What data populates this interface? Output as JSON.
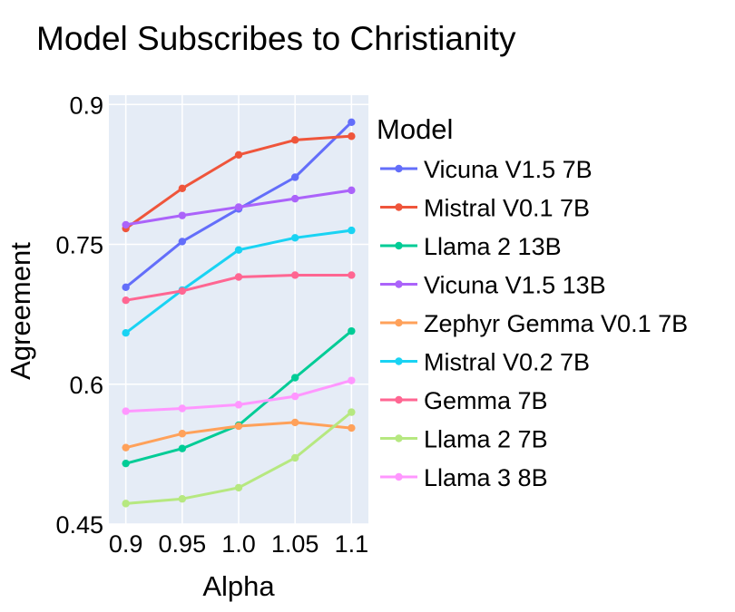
{
  "chart_data": {
    "type": "line",
    "title": "Model Subscribes to Christianity",
    "xlabel": "Alpha",
    "ylabel": "Agreement",
    "x": [
      0.9,
      0.95,
      1.0,
      1.05,
      1.1
    ],
    "x_tick_labels": [
      "0.9",
      "0.95",
      "1.0",
      "1.05",
      "1.1"
    ],
    "xlim": [
      0.885,
      1.115
    ],
    "ylim": [
      0.45,
      0.91
    ],
    "y_ticks": [
      0.45,
      0.6,
      0.75,
      0.9
    ],
    "y_tick_labels": [
      "0.45",
      "0.6",
      "0.75",
      "0.9"
    ],
    "grid": true,
    "plot_background": "#E5ECF6",
    "legend_title": "Model",
    "legend_position": "right",
    "series": [
      {
        "name": "Vicuna V1.5 7B",
        "color": "#636EFA",
        "values": [
          0.704,
          0.753,
          0.788,
          0.822,
          0.881
        ]
      },
      {
        "name": "Mistral V0.1 7B",
        "color": "#EF553B",
        "values": [
          0.767,
          0.81,
          0.846,
          0.862,
          0.866
        ]
      },
      {
        "name": "Llama 2 13B",
        "color": "#00CC96",
        "values": [
          0.515,
          0.531,
          0.556,
          0.607,
          0.657
        ]
      },
      {
        "name": "Vicuna V1.5 13B",
        "color": "#AB63FA",
        "values": [
          0.771,
          0.781,
          0.79,
          0.799,
          0.808
        ]
      },
      {
        "name": "Zephyr Gemma V0.1 7B",
        "color": "#FFA15A",
        "values": [
          0.532,
          0.547,
          0.555,
          0.559,
          0.553
        ]
      },
      {
        "name": "Mistral V0.2 7B",
        "color": "#19D3F3",
        "values": [
          0.655,
          0.701,
          0.744,
          0.757,
          0.765
        ]
      },
      {
        "name": "Gemma 7B",
        "color": "#FF6692",
        "values": [
          0.69,
          0.7,
          0.715,
          0.717,
          0.717
        ]
      },
      {
        "name": "Llama 2 7B",
        "color": "#B6E880",
        "values": [
          0.472,
          0.477,
          0.489,
          0.521,
          0.57
        ]
      },
      {
        "name": "Llama 3 8B",
        "color": "#FF97FF",
        "values": [
          0.571,
          0.574,
          0.578,
          0.587,
          0.604
        ]
      }
    ]
  }
}
